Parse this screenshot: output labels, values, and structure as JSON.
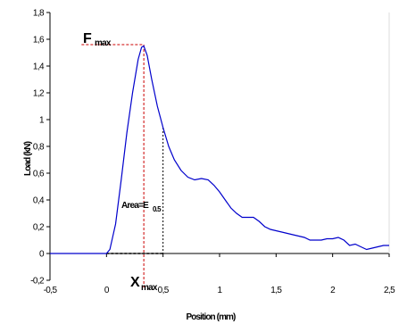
{
  "chart_data": {
    "type": "line",
    "title": "",
    "xlabel": "Position (mm)",
    "ylabel": "Load (kN)",
    "xlim": [
      -0.5,
      2.5
    ],
    "ylim": [
      -0.2,
      1.8
    ],
    "x_ticks": [
      -0.5,
      0,
      0.5,
      1,
      1.5,
      2,
      2.5
    ],
    "x_tick_labels": [
      "-0,5",
      "0",
      "0,5",
      "1",
      "1,5",
      "2",
      "2,5"
    ],
    "y_ticks": [
      -0.2,
      0,
      0.2,
      0.4,
      0.6,
      0.8,
      1,
      1.2,
      1.4,
      1.6,
      1.8
    ],
    "y_tick_labels": [
      "-0,2",
      "0",
      "0,2",
      "0,4",
      "0,6",
      "0,8",
      "1",
      "1,2",
      "1,4",
      "1,6",
      "1,8"
    ],
    "grid": false,
    "line_color": "#0000cc",
    "series": [
      {
        "x": [
          -0.5,
          -0.3,
          -0.1,
          0.0,
          0.03,
          0.08,
          0.13,
          0.18,
          0.23,
          0.28,
          0.31,
          0.33,
          0.36,
          0.4,
          0.45,
          0.5,
          0.55,
          0.6,
          0.66,
          0.72,
          0.78,
          0.84,
          0.9,
          0.95,
          1.0,
          1.05,
          1.1,
          1.15,
          1.2,
          1.25,
          1.3,
          1.35,
          1.4,
          1.45,
          1.5,
          1.55,
          1.6,
          1.65,
          1.7,
          1.75,
          1.8,
          1.85,
          1.9,
          1.95,
          2.0,
          2.05,
          2.1,
          2.15,
          2.2,
          2.25,
          2.3,
          2.35,
          2.4,
          2.45,
          2.5
        ],
        "y": [
          0.0,
          0.0,
          0.0,
          0.0,
          0.03,
          0.22,
          0.55,
          0.9,
          1.2,
          1.45,
          1.54,
          1.55,
          1.48,
          1.3,
          1.1,
          0.94,
          0.8,
          0.7,
          0.62,
          0.57,
          0.55,
          0.56,
          0.55,
          0.51,
          0.46,
          0.4,
          0.34,
          0.3,
          0.27,
          0.27,
          0.27,
          0.24,
          0.2,
          0.18,
          0.17,
          0.16,
          0.15,
          0.14,
          0.13,
          0.12,
          0.1,
          0.1,
          0.1,
          0.11,
          0.11,
          0.12,
          0.1,
          0.06,
          0.07,
          0.05,
          0.03,
          0.04,
          0.05,
          0.06,
          0.06
        ]
      }
    ],
    "annotations": {
      "fmax": {
        "main": "F",
        "sub": "max",
        "x": 0.33,
        "y": 1.56,
        "color": "#cc0000"
      },
      "xmax": {
        "main": "X",
        "sub": "max"
      },
      "area": {
        "label": "Area=E",
        "sub": "0.5",
        "x_end": 0.5,
        "color": "#000000"
      }
    }
  }
}
